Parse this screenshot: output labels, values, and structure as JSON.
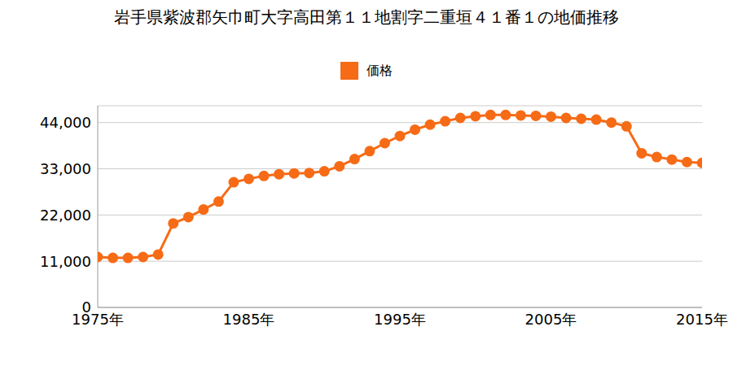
{
  "chart_data": {
    "type": "line",
    "title": "岩手県紫波郡矢巾町大字高田第１１地割字二重垣４１番１の地価推移",
    "x": [
      1975,
      1976,
      1977,
      1978,
      1979,
      1980,
      1981,
      1982,
      1983,
      1984,
      1985,
      1986,
      1987,
      1988,
      1989,
      1990,
      1991,
      1992,
      1993,
      1994,
      1995,
      1996,
      1997,
      1998,
      1999,
      2000,
      2001,
      2002,
      2003,
      2004,
      2005,
      2006,
      2007,
      2008,
      2009,
      2010,
      2011,
      2012,
      2013,
      2014,
      2015
    ],
    "series": [
      {
        "name": "価格",
        "color": "#f66b16",
        "marker": "circle",
        "values": [
          12000,
          11800,
          11800,
          12000,
          12600,
          20000,
          21500,
          23300,
          25200,
          29800,
          30600,
          31300,
          31700,
          31900,
          32000,
          32400,
          33600,
          35300,
          37200,
          39100,
          40800,
          42300,
          43500,
          44300,
          45100,
          45500,
          45800,
          45800,
          45700,
          45600,
          45400,
          45100,
          44900,
          44700,
          44000,
          43100,
          36700,
          35800,
          35200,
          34600,
          34400
        ]
      }
    ],
    "xlim": [
      1975,
      2015
    ],
    "xticks": [
      {
        "value": 1975,
        "label": "1975年"
      },
      {
        "value": 1985,
        "label": "1985年"
      },
      {
        "value": 1995,
        "label": "1995年"
      },
      {
        "value": 2005,
        "label": "2005年"
      },
      {
        "value": 2015,
        "label": "2015年"
      }
    ],
    "ylim": [
      0,
      48000
    ],
    "yticks": [
      0,
      {
        "value": 11000,
        "label": "11,000"
      },
      {
        "value": 22000,
        "label": "22,000"
      },
      {
        "value": 33000,
        "label": "33,000"
      },
      {
        "value": 44000,
        "label": "44,000"
      }
    ],
    "grid": true,
    "legend": "top"
  }
}
